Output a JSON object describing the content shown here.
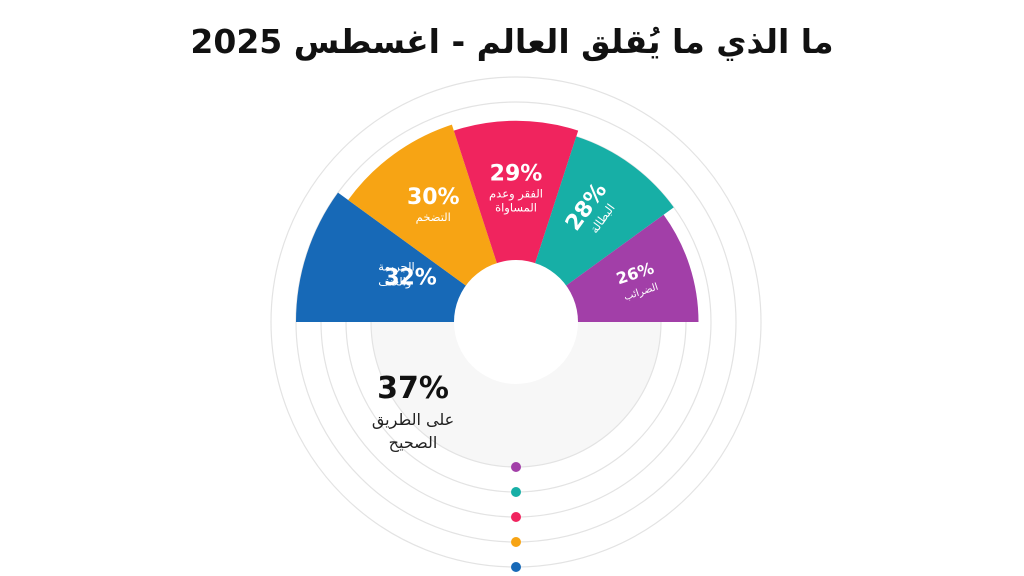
{
  "title": "ما الذي ما يُقلق العالم - اغسطس 2025",
  "chart_data": {
    "type": "radial-bar",
    "title": "ما الذي ما يُقلق العالم - اغسطس 2025",
    "value_unit": "%",
    "categories": [
      {
        "label": "الجريمة والعنف",
        "label_lines": [
          "الجريمة",
          "والعنف"
        ],
        "value": 32,
        "color": "#1769B7"
      },
      {
        "label": "التضخم",
        "label_lines": [
          "التضخم"
        ],
        "value": 30,
        "color": "#F7A414"
      },
      {
        "label": "الفقر وعدم المساواة",
        "label_lines": [
          "الفقر وعدم",
          "المساواة"
        ],
        "value": 29,
        "color": "#F0245E"
      },
      {
        "label": "البطالة",
        "label_lines": [
          "البطالة"
        ],
        "value": 28,
        "color": "#17AFA6"
      },
      {
        "label": "الضرائب",
        "label_lines": [
          "الضرائب"
        ],
        "value": 26,
        "color": "#A23FA8"
      }
    ],
    "summary": {
      "value": 37,
      "label": "على الطريق الصحيح",
      "label_lines": [
        "على الطريق",
        "الصحيح"
      ]
    },
    "ring_count": 5,
    "grid": true
  }
}
